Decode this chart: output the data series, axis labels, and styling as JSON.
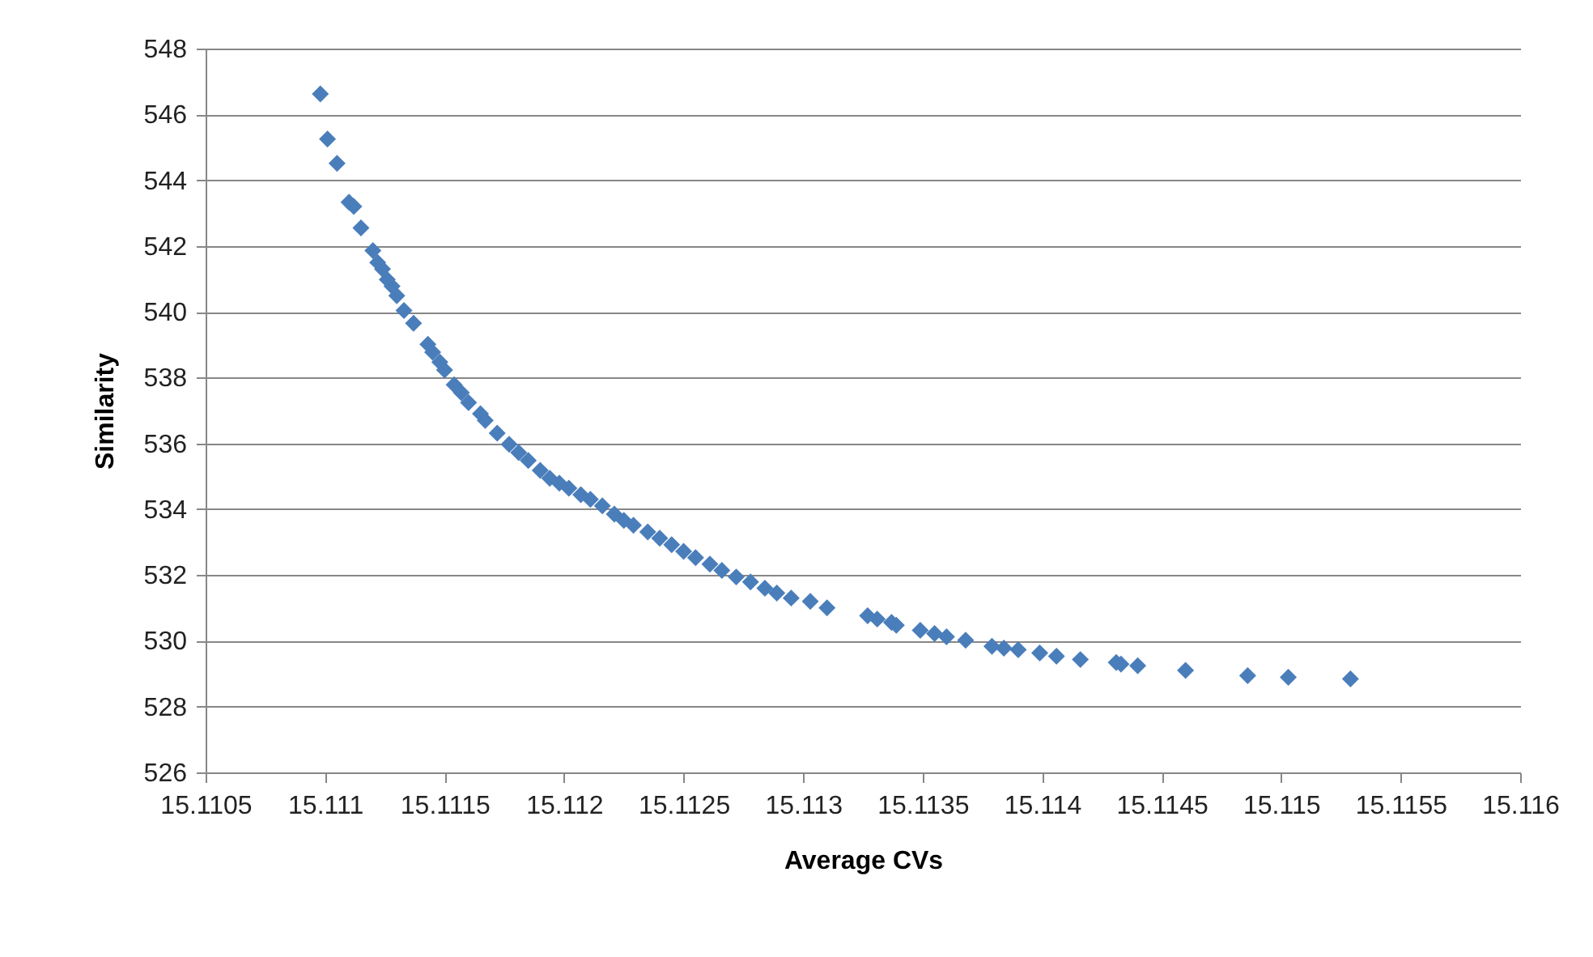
{
  "chart_data": {
    "type": "scatter",
    "xlabel": "Average CVs",
    "ylabel": "Similarity",
    "marker": "diamond",
    "grid": "y",
    "xlim": [
      15.1105,
      15.116
    ],
    "xticks": [
      15.1105,
      15.111,
      15.1115,
      15.112,
      15.1125,
      15.113,
      15.1135,
      15.114,
      15.1145,
      15.115,
      15.1155,
      15.116
    ],
    "ylim": [
      526,
      548
    ],
    "yticks": [
      526,
      528,
      530,
      532,
      534,
      536,
      538,
      540,
      542,
      544,
      546,
      548
    ],
    "series": [
      {
        "color": "#4a7ebb",
        "x": [
          15.11098,
          15.11101,
          15.11105,
          15.1111,
          15.11112,
          15.11115,
          15.1112,
          15.11122,
          15.11124,
          15.11126,
          15.11128,
          15.1113,
          15.11133,
          15.11137,
          15.11143,
          15.11145,
          15.11148,
          15.1115,
          15.11154,
          15.11157,
          15.1116,
          15.11165,
          15.11167,
          15.11172,
          15.11177,
          15.11181,
          15.11185,
          15.1119,
          15.11194,
          15.11198,
          15.11202,
          15.11207,
          15.11211,
          15.11216,
          15.11221,
          15.11225,
          15.11229,
          15.11235,
          15.1124,
          15.11245,
          15.1125,
          15.11255,
          15.11261,
          15.11266,
          15.11272,
          15.11278,
          15.11284,
          15.11289,
          15.11295,
          15.11303,
          15.1131,
          15.11327,
          15.11331,
          15.11337,
          15.11339,
          15.11349,
          15.11355,
          15.1136,
          15.11368,
          15.11379,
          15.11384,
          15.1139,
          15.11399,
          15.11406,
          15.11416,
          15.11431,
          15.11433,
          15.1144,
          15.1146,
          15.11486,
          15.11503,
          15.11529
        ],
        "values": [
          546.62,
          545.25,
          544.51,
          543.33,
          543.2,
          542.55,
          541.86,
          541.5,
          541.3,
          540.98,
          540.78,
          540.49,
          540.04,
          539.65,
          539.01,
          538.77,
          538.47,
          538.23,
          537.78,
          537.54,
          537.24,
          536.9,
          536.7,
          536.31,
          535.97,
          535.72,
          535.48,
          535.18,
          534.94,
          534.79,
          534.64,
          534.44,
          534.3,
          534.1,
          533.85,
          533.66,
          533.51,
          533.31,
          533.12,
          532.92,
          532.72,
          532.53,
          532.33,
          532.14,
          531.94,
          531.79,
          531.6,
          531.45,
          531.3,
          531.2,
          531.0,
          530.76,
          530.66,
          530.56,
          530.47,
          530.32,
          530.22,
          530.12,
          530.02,
          529.83,
          529.78,
          529.73,
          529.63,
          529.53,
          529.43,
          529.34,
          529.29,
          529.24,
          529.1,
          528.94,
          528.89,
          528.84
        ]
      }
    ]
  }
}
